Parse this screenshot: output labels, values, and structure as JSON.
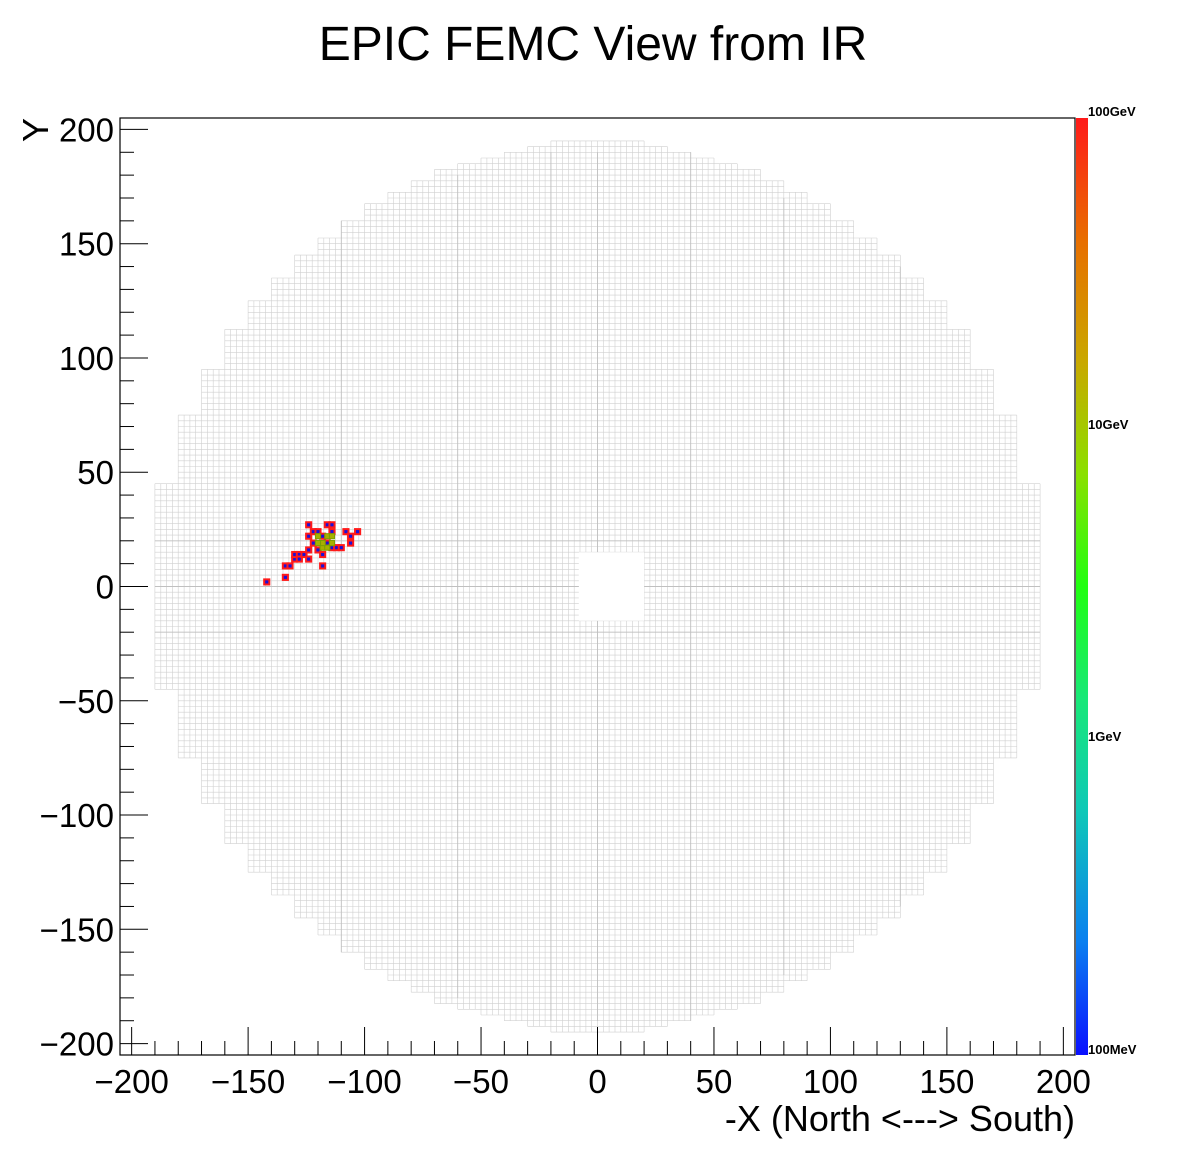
{
  "chart_data": {
    "type": "heatmap",
    "title": "EPIC FEMC View from IR",
    "xlabel": "-X (North <---> South)",
    "ylabel": "Y",
    "xlim": [
      -205,
      205
    ],
    "ylim": [
      -205,
      205
    ],
    "x_ticks": [
      -200,
      -150,
      -100,
      -50,
      0,
      50,
      100,
      150,
      200
    ],
    "x_tick_labels": [
      "−200",
      "−150",
      "−100",
      "−50",
      "0",
      "50",
      "100",
      "150",
      "200"
    ],
    "y_ticks": [
      -200,
      -150,
      -100,
      -50,
      0,
      50,
      100,
      150,
      200
    ],
    "y_tick_labels": [
      "−200",
      "−150",
      "−100",
      "−50",
      "0",
      "50",
      "100",
      "150",
      "200"
    ],
    "colorbar": {
      "scale": "log",
      "labels": [
        "100MeV",
        "1GeV",
        "10GeV",
        "100GeV"
      ],
      "colors": [
        "#0a10ff",
        "#0a7ff0",
        "#0ec8b8",
        "#18e878",
        "#20ff10",
        "#8be000",
        "#c9a800",
        "#e86e00",
        "#ff1a1a"
      ]
    },
    "detector": {
      "outer_radius": 195,
      "beam_hole": {
        "x": [
          -8,
          20
        ],
        "y": [
          -15,
          15
        ]
      },
      "cell_size": 2.5,
      "cell_stroke_color": "#d0d0d0"
    },
    "hits": [
      {
        "x": -142,
        "y": 2
      },
      {
        "x": -134,
        "y": 4
      },
      {
        "x": -134,
        "y": 9
      },
      {
        "x": -132,
        "y": 9
      },
      {
        "x": -130,
        "y": 12
      },
      {
        "x": -130,
        "y": 14
      },
      {
        "x": -128,
        "y": 14
      },
      {
        "x": -128,
        "y": 12
      },
      {
        "x": -126,
        "y": 14
      },
      {
        "x": -124,
        "y": 12
      },
      {
        "x": -124,
        "y": 16
      },
      {
        "x": -124,
        "y": 22
      },
      {
        "x": -124,
        "y": 27
      },
      {
        "x": -122,
        "y": 19
      },
      {
        "x": -122,
        "y": 24
      },
      {
        "x": -120,
        "y": 16
      },
      {
        "x": -120,
        "y": 24
      },
      {
        "x": -118,
        "y": 14
      },
      {
        "x": -118,
        "y": 9
      },
      {
        "x": -118,
        "y": 22
      },
      {
        "x": -116,
        "y": 27
      },
      {
        "x": -116,
        "y": 19
      },
      {
        "x": -114,
        "y": 17
      },
      {
        "x": -114,
        "y": 24
      },
      {
        "x": -114,
        "y": 27
      },
      {
        "x": -112,
        "y": 17
      },
      {
        "x": -110,
        "y": 17
      },
      {
        "x": -108,
        "y": 24
      },
      {
        "x": -106,
        "y": 19
      },
      {
        "x": -106,
        "y": 22
      },
      {
        "x": -103,
        "y": 24
      },
      {
        "x": -118,
        "y": 17,
        "core": true
      },
      {
        "x": -116,
        "y": 17,
        "core": true
      },
      {
        "x": -118,
        "y": 19,
        "core": true
      },
      {
        "x": -116,
        "y": 22,
        "core": true
      },
      {
        "x": -114,
        "y": 19,
        "core": true
      },
      {
        "x": -114,
        "y": 22,
        "core": true
      },
      {
        "x": -120,
        "y": 22,
        "core": true
      },
      {
        "x": -120,
        "y": 19,
        "core": true
      }
    ]
  }
}
